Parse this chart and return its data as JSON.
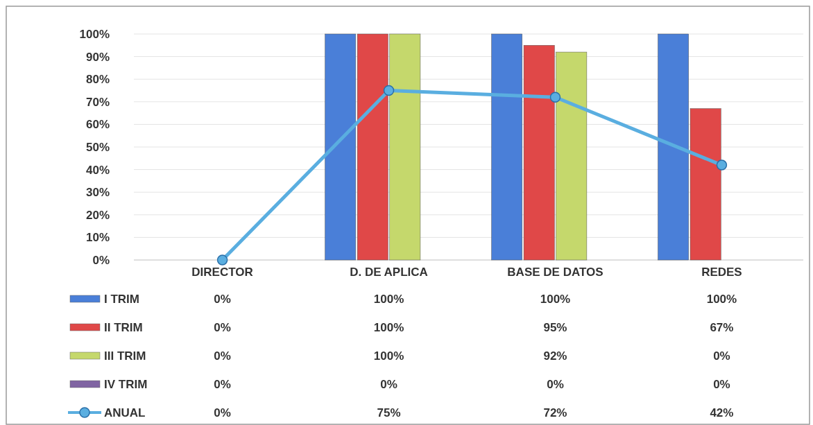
{
  "chart_data": {
    "type": "bar",
    "categories": [
      "DIRECTOR",
      "D. DE APLICA",
      "BASE DE DATOS",
      "REDES"
    ],
    "ylim": [
      0,
      100
    ],
    "yticks": [
      {
        "value": 0,
        "label": "0%"
      },
      {
        "value": 10,
        "label": "10%"
      },
      {
        "value": 20,
        "label": "20%"
      },
      {
        "value": 30,
        "label": "30%"
      },
      {
        "value": 40,
        "label": "40%"
      },
      {
        "value": 50,
        "label": "50%"
      },
      {
        "value": 60,
        "label": "60%"
      },
      {
        "value": 70,
        "label": "70%"
      },
      {
        "value": 80,
        "label": "80%"
      },
      {
        "value": 90,
        "label": "90%"
      },
      {
        "value": 100,
        "label": "100%"
      }
    ],
    "grid": "y",
    "legend": "bottom",
    "marker": "circle",
    "series": [
      {
        "name": "I TRIM",
        "color": "#4a7fd8",
        "values": [
          0,
          100,
          100,
          100
        ],
        "value_labels": [
          "0%",
          "100%",
          "100%",
          "100%"
        ]
      },
      {
        "name": "II TRIM",
        "color": "#e04848",
        "values": [
          0,
          100,
          95,
          67
        ],
        "value_labels": [
          "0%",
          "100%",
          "95%",
          "67%"
        ]
      },
      {
        "name": "III TRIM",
        "color": "#c5d86c",
        "values": [
          0,
          100,
          92,
          0
        ],
        "value_labels": [
          "0%",
          "100%",
          "92%",
          "0%"
        ]
      },
      {
        "name": "IV TRIM",
        "color": "#8064a2",
        "values": [
          0,
          0,
          0,
          0
        ],
        "value_labels": [
          "0%",
          "0%",
          "0%",
          "0%"
        ]
      },
      {
        "name": "ANUAL",
        "type": "line",
        "color": "#5aaee0",
        "values": [
          0,
          75,
          72,
          42
        ],
        "value_labels": [
          "0%",
          "75%",
          "72%",
          "42%"
        ]
      }
    ]
  }
}
